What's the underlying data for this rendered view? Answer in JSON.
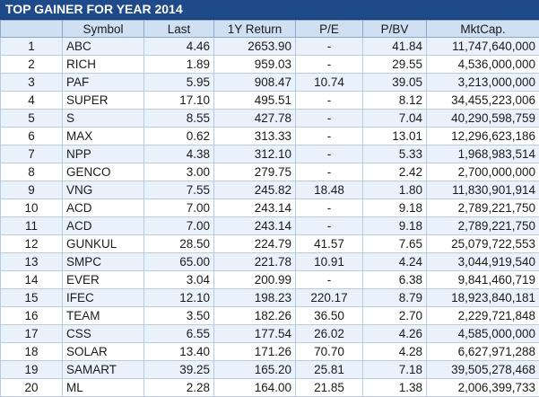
{
  "title": "TOP GAINER FOR YEAR 2014",
  "columns": [
    "",
    "Symbol",
    "Last",
    "1Y Return",
    "P/E",
    "P/BV",
    "MktCap."
  ],
  "rows": [
    [
      "1",
      "ABC",
      "4.46",
      "2653.90",
      "-",
      "41.84",
      "11,747,640,000"
    ],
    [
      "2",
      "RICH",
      "1.89",
      "959.03",
      "-",
      "29.55",
      "4,536,000,000"
    ],
    [
      "3",
      "PAF",
      "5.95",
      "908.47",
      "10.74",
      "39.05",
      "3,213,000,000"
    ],
    [
      "4",
      "SUPER",
      "17.10",
      "495.51",
      "-",
      "8.12",
      "34,455,223,006"
    ],
    [
      "5",
      "S",
      "8.55",
      "427.78",
      "-",
      "7.04",
      "40,290,598,759"
    ],
    [
      "6",
      "MAX",
      "0.62",
      "313.33",
      "-",
      "13.01",
      "12,296,623,186"
    ],
    [
      "7",
      "NPP",
      "4.38",
      "312.10",
      "-",
      "5.33",
      "1,968,983,514"
    ],
    [
      "8",
      "GENCO",
      "3.00",
      "279.75",
      "-",
      "2.42",
      "2,700,000,000"
    ],
    [
      "9",
      "VNG",
      "7.55",
      "245.82",
      "18.48",
      "1.80",
      "11,830,901,914"
    ],
    [
      "10",
      "ACD",
      "7.00",
      "243.14",
      "-",
      "9.18",
      "2,789,221,750"
    ],
    [
      "11",
      "ACD",
      "7.00",
      "243.14",
      "-",
      "9.18",
      "2,789,221,750"
    ],
    [
      "12",
      "GUNKUL",
      "28.50",
      "224.79",
      "41.57",
      "7.65",
      "25,079,722,553"
    ],
    [
      "13",
      "SMPC",
      "65.00",
      "221.78",
      "10.91",
      "4.24",
      "3,044,919,540"
    ],
    [
      "14",
      "EVER",
      "3.04",
      "200.99",
      "-",
      "6.38",
      "9,841,460,719"
    ],
    [
      "15",
      "IFEC",
      "12.10",
      "198.23",
      "220.17",
      "8.79",
      "18,923,840,181"
    ],
    [
      "16",
      "TEAM",
      "3.50",
      "182.26",
      "36.50",
      "2.70",
      "2,229,721,848"
    ],
    [
      "17",
      "CSS",
      "6.55",
      "177.54",
      "26.02",
      "4.26",
      "4,585,000,000"
    ],
    [
      "18",
      "SOLAR",
      "13.40",
      "171.26",
      "70.70",
      "4.28",
      "6,627,971,288"
    ],
    [
      "19",
      "SAMART",
      "39.25",
      "165.20",
      "25.81",
      "7.18",
      "39,505,278,468"
    ],
    [
      "20",
      "ML",
      "2.28",
      "164.00",
      "21.85",
      "1.38",
      "2,006,399,733"
    ]
  ]
}
